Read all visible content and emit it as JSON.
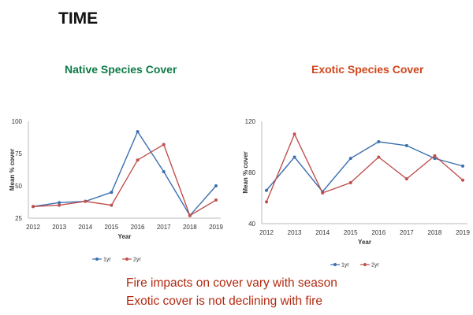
{
  "slide_title": "TIME",
  "footer_lines": [
    "Fire impacts on cover vary with season",
    "Exotic cover is not declining with fire"
  ],
  "colors": {
    "series_1yr": "#3b6fae",
    "series_2yr": "#c0504d",
    "native_title": "#0c7a45",
    "exotic_title": "#d0451b",
    "footer": "#b22a10"
  },
  "chart_data": [
    {
      "type": "line",
      "title": "Native Species Cover",
      "xlabel": "Year",
      "ylabel": "Mean % cover",
      "categories": [
        "2012",
        "2013",
        "2014",
        "2015",
        "2016",
        "2017",
        "2018",
        "2019"
      ],
      "ylim": [
        25,
        100
      ],
      "yticks": [
        25,
        50,
        75,
        100
      ],
      "grid": false,
      "legend": "bottom",
      "series": [
        {
          "name": "1yr",
          "values": [
            34,
            37,
            38,
            45,
            92,
            61,
            27,
            50
          ]
        },
        {
          "name": "2yr",
          "values": [
            34,
            35,
            38,
            35,
            70,
            82,
            27,
            39
          ]
        }
      ]
    },
    {
      "type": "line",
      "title": "Exotic Species Cover",
      "xlabel": "Year",
      "ylabel": "Mean % cover",
      "categories": [
        "2012",
        "2013",
        "2014",
        "2015",
        "2016",
        "2017",
        "2018",
        "2019"
      ],
      "ylim": [
        40,
        120
      ],
      "yticks": [
        40,
        80,
        120
      ],
      "grid": false,
      "legend": "bottom",
      "series": [
        {
          "name": "1yr",
          "values": [
            66,
            92,
            65,
            91,
            104,
            101,
            91,
            85
          ]
        },
        {
          "name": "2yr",
          "values": [
            57,
            110,
            64,
            72,
            92,
            75,
            93,
            74
          ]
        }
      ]
    }
  ]
}
